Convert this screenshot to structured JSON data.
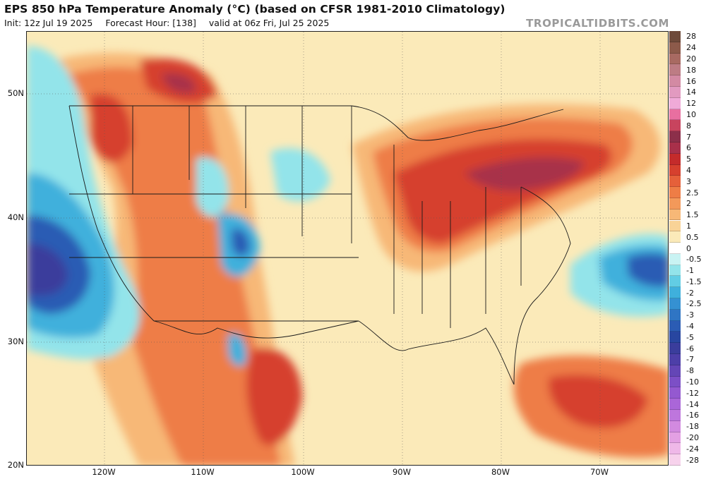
{
  "header": {
    "title": "EPS 850 hPa Temperature Anomaly (°C) (based on CFSR 1981-2010 Climatology)",
    "init": "Init: 12z Jul 19 2025",
    "forecast_hour": "Forecast Hour: [138]",
    "valid": "valid at 06z Fri, Jul 25 2025",
    "brand": "TROPICALTIDBITS.COM"
  },
  "axes": {
    "lat_labels": [
      "50N",
      "40N",
      "30N",
      "20N"
    ],
    "lon_labels": [
      "120W",
      "110W",
      "100W",
      "90W",
      "80W",
      "70W"
    ]
  },
  "colorbar": {
    "levels": [
      {
        "label": "28",
        "color": "#6e4a3a"
      },
      {
        "label": "24",
        "color": "#8c5a4a"
      },
      {
        "label": "20",
        "color": "#a86a62"
      },
      {
        "label": "18",
        "color": "#bd7c84"
      },
      {
        "label": "16",
        "color": "#d38aa3"
      },
      {
        "label": "14",
        "color": "#e29ac0"
      },
      {
        "label": "12",
        "color": "#f0aad8"
      },
      {
        "label": "10",
        "color": "#e86fa0"
      },
      {
        "label": "8",
        "color": "#c8445e"
      },
      {
        "label": "7",
        "color": "#8c2f4a"
      },
      {
        "label": "6",
        "color": "#a8304a"
      },
      {
        "label": "5",
        "color": "#c42b2b"
      },
      {
        "label": "4",
        "color": "#d6402e"
      },
      {
        "label": "3",
        "color": "#e5603a"
      },
      {
        "label": "2.5",
        "color": "#ee7d46"
      },
      {
        "label": "2",
        "color": "#f3995a"
      },
      {
        "label": "1.5",
        "color": "#f7b877"
      },
      {
        "label": "1",
        "color": "#f9d397"
      },
      {
        "label": "0.5",
        "color": "#fbeab9"
      },
      {
        "label": "0",
        "color": "#ffffff"
      },
      {
        "label": "-0.5",
        "color": "#c9f3f3"
      },
      {
        "label": "-1",
        "color": "#93e4ea"
      },
      {
        "label": "-1.5",
        "color": "#62cde4"
      },
      {
        "label": "-2",
        "color": "#3fb0dc"
      },
      {
        "label": "-2.5",
        "color": "#3591d2"
      },
      {
        "label": "-3",
        "color": "#2f75c4"
      },
      {
        "label": "-4",
        "color": "#2b5cb4"
      },
      {
        "label": "-5",
        "color": "#2846a0"
      },
      {
        "label": "-6",
        "color": "#3a3d9c"
      },
      {
        "label": "-7",
        "color": "#4d3fa8"
      },
      {
        "label": "-8",
        "color": "#6446b6"
      },
      {
        "label": "-10",
        "color": "#7c4fc6"
      },
      {
        "label": "-12",
        "color": "#9459d0"
      },
      {
        "label": "-14",
        "color": "#aa66d8"
      },
      {
        "label": "-16",
        "color": "#be76dd"
      },
      {
        "label": "-18",
        "color": "#d28ae0"
      },
      {
        "label": "-20",
        "color": "#e3a0e3"
      },
      {
        "label": "-24",
        "color": "#efb8e8"
      },
      {
        "label": "-28",
        "color": "#f7d2ec"
      }
    ]
  },
  "palette": {
    "ocean_cool": "#fbeab9",
    "warm_1": "#f7b877",
    "warm_2": "#ee7d46",
    "warm_3": "#d6402e",
    "warm_4": "#a8304a",
    "cold_1": "#93e4ea",
    "cold_2": "#3fb0dc",
    "cold_3": "#2b5cb4",
    "cold_4": "#3a3d9c"
  }
}
